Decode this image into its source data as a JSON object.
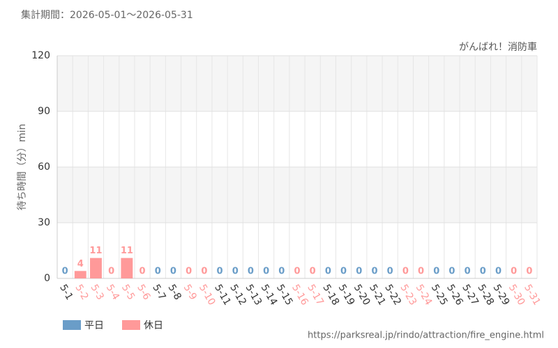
{
  "header": "集計期間：2026-05-01～2026-05-31",
  "footer": "https://parksreal.jp/rindo/attraction/fire_engine.html",
  "chart_data": {
    "type": "bar",
    "title": "がんばれ！消防車",
    "y_label": "待ち時間（分）min",
    "categories": [
      "5-1",
      "5-2",
      "5-3",
      "5-4",
      "5-5",
      "5-6",
      "5-7",
      "5-8",
      "5-9",
      "5-10",
      "5-11",
      "5-12",
      "5-13",
      "5-14",
      "5-15",
      "5-16",
      "5-17",
      "5-18",
      "5-19",
      "5-20",
      "5-21",
      "5-22",
      "5-23",
      "5-24",
      "5-25",
      "5-26",
      "5-27",
      "5-28",
      "5-29",
      "5-30",
      "5-31"
    ],
    "series": [
      {
        "name": "平日",
        "color": "#6a9dc8",
        "label_color": "#333333",
        "values": [
          0,
          null,
          null,
          null,
          null,
          null,
          0,
          0,
          null,
          null,
          0,
          0,
          0,
          0,
          0,
          null,
          null,
          0,
          0,
          0,
          0,
          0,
          null,
          null,
          0,
          0,
          0,
          0,
          0,
          null,
          null
        ]
      },
      {
        "name": "休日",
        "color": "#ff9999",
        "label_color": "#ff9999",
        "values": [
          null,
          4,
          11,
          0,
          11,
          0,
          null,
          null,
          0,
          0,
          null,
          null,
          null,
          null,
          null,
          0,
          0,
          null,
          null,
          null,
          null,
          null,
          0,
          0,
          null,
          null,
          null,
          null,
          null,
          0,
          0
        ]
      }
    ],
    "ylim": [
      0,
      120
    ],
    "yticks": [
      0,
      30,
      60,
      90,
      120
    ],
    "grid": true
  }
}
